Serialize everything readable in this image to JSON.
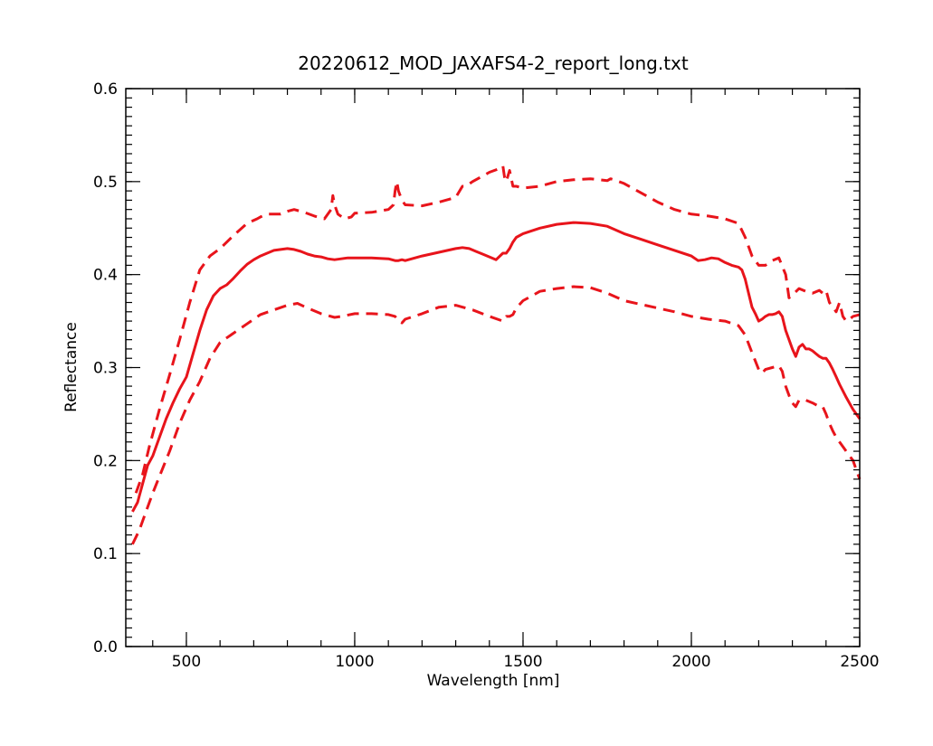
{
  "chart_data": {
    "type": "line",
    "title": "20220612_MOD_JAXAFS4-2_report_long.txt",
    "xlabel": "Wavelength [nm]",
    "ylabel": "Reflectance",
    "xlim": [
      320,
      2500
    ],
    "ylim": [
      0.0,
      0.6
    ],
    "x_ticks": [
      500,
      1000,
      1500,
      2000,
      2500
    ],
    "x_tick_labels": [
      "500",
      "1000",
      "1500",
      "2000",
      "2500"
    ],
    "y_ticks": [
      0.0,
      0.1,
      0.2,
      0.3,
      0.4,
      0.5,
      0.6
    ],
    "y_tick_labels": [
      "0.0",
      "0.1",
      "0.2",
      "0.3",
      "0.4",
      "0.5",
      "0.6"
    ],
    "x_minor_step": 100,
    "y_minor_step": 0.01,
    "grid": false,
    "legend": "none",
    "color": "#e8141b",
    "series": [
      {
        "style": "dashed",
        "x": [
          350,
          370,
          390,
          420,
          450,
          480,
          510,
          540,
          570,
          600,
          640,
          680,
          710,
          720,
          740,
          760,
          780,
          800,
          820,
          850,
          880,
          910,
          930,
          935,
          940,
          950,
          970,
          990,
          1000,
          1050,
          1100,
          1115,
          1120,
          1125,
          1130,
          1140,
          1150,
          1200,
          1250,
          1300,
          1320,
          1330,
          1350,
          1400,
          1430,
          1440,
          1445,
          1450,
          1460,
          1470,
          1480,
          1500,
          1550,
          1600,
          1650,
          1700,
          1750,
          1760,
          1770,
          1800,
          1850,
          1900,
          1950,
          2000,
          2050,
          2100,
          2140,
          2160,
          2180,
          2200,
          2220,
          2240,
          2260,
          2280,
          2290,
          2300,
          2320,
          2340,
          2360,
          2380,
          2390,
          2400,
          2410,
          2420,
          2430,
          2440,
          2450,
          2460,
          2470,
          2480,
          2490,
          2500
        ],
        "y": [
          0.165,
          0.185,
          0.215,
          0.255,
          0.292,
          0.33,
          0.37,
          0.405,
          0.42,
          0.428,
          0.442,
          0.455,
          0.46,
          0.462,
          0.465,
          0.465,
          0.465,
          0.468,
          0.47,
          0.467,
          0.463,
          0.46,
          0.47,
          0.485,
          0.475,
          0.465,
          0.46,
          0.462,
          0.466,
          0.467,
          0.47,
          0.475,
          0.49,
          0.5,
          0.49,
          0.48,
          0.475,
          0.474,
          0.478,
          0.483,
          0.495,
          0.495,
          0.5,
          0.51,
          0.514,
          0.517,
          0.505,
          0.5,
          0.512,
          0.495,
          0.495,
          0.493,
          0.495,
          0.5,
          0.502,
          0.503,
          0.501,
          0.503,
          0.502,
          0.498,
          0.488,
          0.478,
          0.47,
          0.465,
          0.463,
          0.46,
          0.455,
          0.44,
          0.42,
          0.41,
          0.41,
          0.415,
          0.418,
          0.4,
          0.375,
          0.378,
          0.385,
          0.382,
          0.38,
          0.383,
          0.38,
          0.383,
          0.37,
          0.365,
          0.36,
          0.37,
          0.355,
          0.35,
          0.352,
          0.355,
          0.356,
          0.357
        ]
      },
      {
        "style": "solid",
        "x": [
          340,
          355,
          370,
          385,
          400,
          420,
          440,
          460,
          480,
          500,
          520,
          540,
          560,
          580,
          600,
          620,
          640,
          660,
          680,
          700,
          720,
          740,
          760,
          780,
          800,
          820,
          840,
          860,
          880,
          900,
          920,
          940,
          960,
          980,
          1000,
          1050,
          1100,
          1120,
          1130,
          1140,
          1150,
          1200,
          1250,
          1300,
          1320,
          1340,
          1360,
          1380,
          1400,
          1420,
          1440,
          1445,
          1450,
          1460,
          1470,
          1480,
          1500,
          1550,
          1600,
          1650,
          1700,
          1750,
          1800,
          1850,
          1900,
          1950,
          2000,
          2020,
          2040,
          2060,
          2080,
          2100,
          2120,
          2140,
          2150,
          2160,
          2170,
          2180,
          2190,
          2200,
          2210,
          2220,
          2230,
          2240,
          2250,
          2260,
          2270,
          2280,
          2290,
          2300,
          2310,
          2320,
          2330,
          2340,
          2350,
          2360,
          2370,
          2380,
          2390,
          2400,
          2410,
          2420,
          2430,
          2440,
          2460,
          2480,
          2500
        ],
        "y": [
          0.145,
          0.155,
          0.175,
          0.195,
          0.205,
          0.225,
          0.245,
          0.262,
          0.277,
          0.29,
          0.315,
          0.34,
          0.362,
          0.377,
          0.385,
          0.389,
          0.396,
          0.404,
          0.411,
          0.416,
          0.42,
          0.423,
          0.426,
          0.427,
          0.428,
          0.427,
          0.425,
          0.422,
          0.42,
          0.419,
          0.417,
          0.416,
          0.417,
          0.418,
          0.418,
          0.418,
          0.417,
          0.415,
          0.415,
          0.416,
          0.415,
          0.42,
          0.424,
          0.428,
          0.429,
          0.428,
          0.425,
          0.422,
          0.419,
          0.416,
          0.423,
          0.423,
          0.423,
          0.428,
          0.435,
          0.44,
          0.444,
          0.45,
          0.454,
          0.456,
          0.455,
          0.452,
          0.444,
          0.438,
          0.432,
          0.426,
          0.42,
          0.415,
          0.416,
          0.418,
          0.417,
          0.413,
          0.41,
          0.408,
          0.405,
          0.395,
          0.38,
          0.365,
          0.358,
          0.35,
          0.352,
          0.355,
          0.357,
          0.357,
          0.358,
          0.36,
          0.355,
          0.34,
          0.33,
          0.32,
          0.312,
          0.322,
          0.325,
          0.32,
          0.32,
          0.318,
          0.315,
          0.312,
          0.31,
          0.31,
          0.305,
          0.298,
          0.29,
          0.282,
          0.268,
          0.255,
          0.245
        ]
      },
      {
        "style": "dashed",
        "x": [
          340,
          360,
          380,
          400,
          420,
          450,
          480,
          510,
          540,
          570,
          600,
          640,
          680,
          720,
          760,
          800,
          830,
          860,
          900,
          940,
          960,
          1000,
          1050,
          1100,
          1120,
          1130,
          1140,
          1150,
          1200,
          1250,
          1300,
          1350,
          1400,
          1440,
          1450,
          1460,
          1470,
          1480,
          1500,
          1550,
          1600,
          1650,
          1700,
          1750,
          1800,
          1850,
          1900,
          1950,
          2000,
          2050,
          2100,
          2140,
          2160,
          2180,
          2200,
          2210,
          2220,
          2240,
          2260,
          2270,
          2280,
          2290,
          2300,
          2310,
          2320,
          2340,
          2360,
          2380,
          2390,
          2400,
          2410,
          2420,
          2430,
          2440,
          2450,
          2460,
          2480,
          2500
        ],
        "y": [
          0.11,
          0.125,
          0.145,
          0.165,
          0.183,
          0.21,
          0.24,
          0.265,
          0.285,
          0.31,
          0.327,
          0.337,
          0.347,
          0.357,
          0.362,
          0.367,
          0.369,
          0.364,
          0.358,
          0.354,
          0.355,
          0.358,
          0.358,
          0.357,
          0.355,
          0.35,
          0.348,
          0.352,
          0.358,
          0.365,
          0.367,
          0.362,
          0.355,
          0.35,
          0.355,
          0.355,
          0.357,
          0.364,
          0.372,
          0.382,
          0.385,
          0.387,
          0.386,
          0.38,
          0.372,
          0.368,
          0.364,
          0.36,
          0.355,
          0.352,
          0.35,
          0.345,
          0.335,
          0.316,
          0.298,
          0.294,
          0.298,
          0.3,
          0.302,
          0.296,
          0.28,
          0.27,
          0.262,
          0.258,
          0.265,
          0.265,
          0.262,
          0.258,
          0.258,
          0.25,
          0.24,
          0.232,
          0.225,
          0.22,
          0.215,
          0.21,
          0.2,
          0.18
        ]
      }
    ]
  }
}
